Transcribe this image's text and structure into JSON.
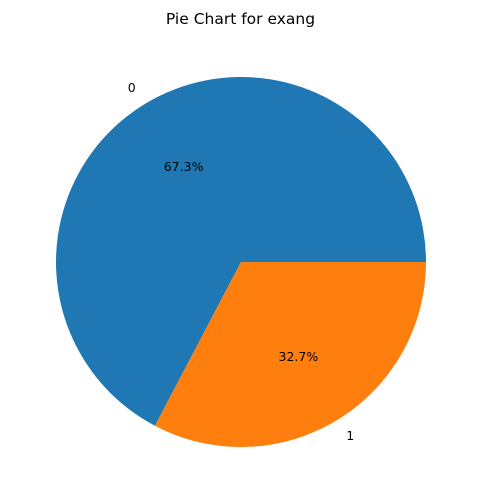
{
  "chart_data": {
    "type": "pie",
    "title": "Pie Chart for exang",
    "slices": [
      {
        "label": "0",
        "value": 67.3,
        "pct_label": "67.3%",
        "color": "#1f77b4"
      },
      {
        "label": "1",
        "value": 32.7,
        "pct_label": "32.7%",
        "color": "#ff7f0e"
      }
    ],
    "start_angle_deg": 0,
    "direction": "counterclockwise"
  }
}
